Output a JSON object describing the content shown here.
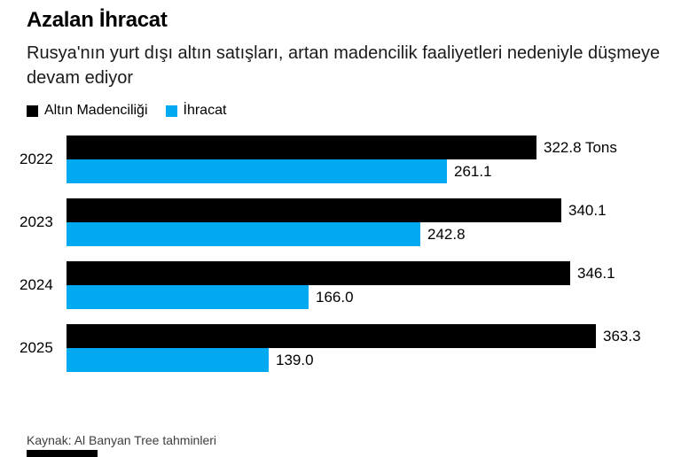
{
  "header": {
    "title": "Azalan İhracat",
    "subtitle": "Rusya'nın yurt dışı altın satışları, artan madencilik faaliyetleri nedeniyle düşmeye devam ediyor"
  },
  "legend": [
    {
      "label": "Altın Madenciliği",
      "color": "#000000"
    },
    {
      "label": "İhracat",
      "color": "#00a9f0"
    }
  ],
  "chart_data": {
    "type": "bar",
    "orientation": "horizontal",
    "title": "Azalan İhracat",
    "subtitle": "Rusya'nın yurt dışı altın satışları, artan madencilik faaliyetleri nedeniyle düşmeye devam ediyor",
    "unit": "Tons",
    "categories": [
      "2022",
      "2023",
      "2024",
      "2025"
    ],
    "series": [
      {
        "name": "Altın Madenciliği",
        "color": "#000000",
        "values": [
          322.8,
          340.1,
          346.1,
          363.3
        ],
        "labels": [
          "322.8 Tons",
          "340.1",
          "346.1",
          "363.3"
        ]
      },
      {
        "name": "İhracat",
        "color": "#00a9f0",
        "values": [
          261.1,
          242.8,
          166.0,
          139.0
        ],
        "labels": [
          "261.1",
          "242.8",
          "166.0",
          "139.0"
        ]
      }
    ],
    "value_axis": {
      "visible": false,
      "range": [
        0,
        380
      ]
    },
    "grid": false,
    "legend_position": "top",
    "data_labels": true
  },
  "footer": {
    "source": "Kaynak: Al Banyan Tree tahminleri"
  }
}
